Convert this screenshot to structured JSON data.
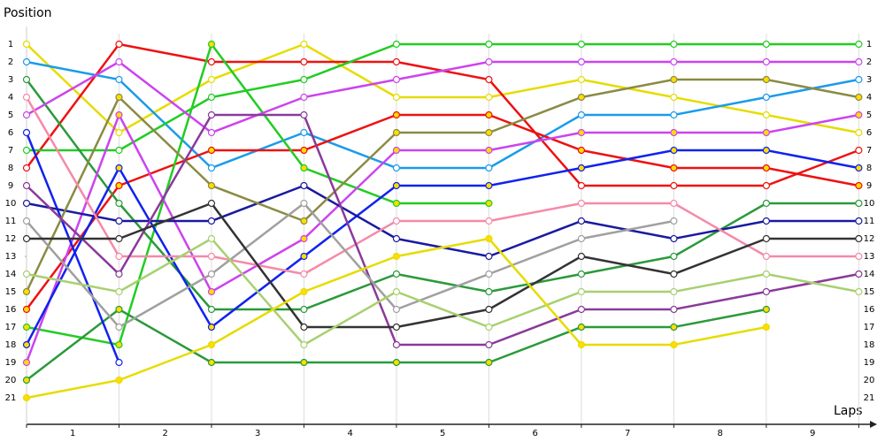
{
  "chart_data": {
    "type": "line",
    "y_label": "Position",
    "x_label": "Laps",
    "x": [
      0,
      1,
      2,
      3,
      4,
      5,
      6,
      7,
      8,
      9
    ],
    "xlim": [
      0,
      9.14
    ],
    "xticks": [
      {
        "value": 0.5,
        "label": "1"
      },
      {
        "value": 1.5,
        "label": "2"
      },
      {
        "value": 2.5,
        "label": "3"
      },
      {
        "value": 3.5,
        "label": "4"
      },
      {
        "value": 4.5,
        "label": "5"
      },
      {
        "value": 5.5,
        "label": "6"
      },
      {
        "value": 6.5,
        "label": "7"
      },
      {
        "value": 7.5,
        "label": "8"
      },
      {
        "value": 8.5,
        "label": "9"
      }
    ],
    "ylim": [
      0,
      22.5
    ],
    "y_inverted": true,
    "yticks": [
      1,
      2,
      3,
      4,
      5,
      6,
      7,
      8,
      9,
      10,
      11,
      12,
      13,
      14,
      15,
      16,
      17,
      18,
      19,
      20,
      21
    ],
    "grid": true,
    "series": [
      {
        "color": "#e6dc00",
        "marker_fill": "#ffffff",
        "values": [
          1,
          6,
          3,
          1,
          4,
          4,
          3,
          4,
          5,
          6
        ]
      },
      {
        "color": "#1a9bea",
        "marker_fill": "#ffffff",
        "values": [
          2,
          3,
          8,
          6,
          8,
          8,
          5,
          5,
          4,
          3
        ]
      },
      {
        "color": "#ee1111",
        "marker_fill": "#ffffff",
        "values": [
          8,
          1,
          2,
          2,
          2,
          3,
          9,
          9,
          9,
          7
        ]
      },
      {
        "color": "#ee1111",
        "marker_fill": "#ffdd00",
        "values": [
          16,
          9,
          7,
          7,
          5,
          5,
          7,
          8,
          8,
          9
        ]
      },
      {
        "color": "#22cc22",
        "marker_fill": "#ffffff",
        "values": [
          7,
          7,
          4,
          3,
          1,
          1,
          1,
          1,
          1,
          1
        ]
      },
      {
        "color": "#22cc22",
        "marker_fill": "#ffdd00",
        "values": [
          17,
          18,
          1,
          8,
          10,
          10,
          null,
          null,
          null,
          null
        ]
      },
      {
        "color": "#2a9a3a",
        "marker_fill": "#ffffff",
        "values": [
          3,
          10,
          16,
          16,
          14,
          15,
          14,
          13,
          10,
          10
        ]
      },
      {
        "color": "#2a9a3a",
        "marker_fill": "#ffdd00",
        "values": [
          20,
          16,
          19,
          19,
          19,
          19,
          17,
          17,
          16,
          null
        ]
      },
      {
        "color": "#cc44ee",
        "marker_fill": "#ffffff",
        "values": [
          5,
          2,
          6,
          4,
          3,
          2,
          2,
          2,
          2,
          2
        ]
      },
      {
        "color": "#cc44ee",
        "marker_fill": "#ffdd00",
        "values": [
          19,
          5,
          15,
          12,
          7,
          7,
          6,
          6,
          6,
          5
        ]
      },
      {
        "color": "#1122ee",
        "marker_fill": "#ffffff",
        "values": [
          6,
          19,
          null,
          null,
          null,
          null,
          null,
          null,
          null,
          null
        ]
      },
      {
        "color": "#1122ee",
        "marker_fill": "#ffdd00",
        "values": [
          18,
          8,
          17,
          13,
          9,
          9,
          8,
          7,
          7,
          8
        ]
      },
      {
        "color": "#1a1aa0",
        "marker_fill": "#ffffff",
        "values": [
          10,
          11,
          11,
          9,
          12,
          13,
          11,
          12,
          11,
          11
        ]
      },
      {
        "color": "#8a8a44",
        "marker_fill": "#ffdd00",
        "values": [
          15,
          4,
          9,
          11,
          6,
          6,
          4,
          3,
          3,
          4
        ]
      },
      {
        "color": "#f58aa8",
        "marker_fill": "#ffffff",
        "values": [
          4,
          13,
          13,
          14,
          11,
          11,
          10,
          10,
          13,
          13
        ]
      },
      {
        "color": "#8a3a9a",
        "marker_fill": "#ffffff",
        "values": [
          9,
          14,
          5,
          5,
          18,
          18,
          16,
          16,
          15,
          14
        ]
      },
      {
        "color": "#a0a0a0",
        "marker_fill": "#ffffff",
        "values": [
          11,
          17,
          14,
          10,
          16,
          14,
          12,
          11,
          null,
          null
        ]
      },
      {
        "color": "#333333",
        "marker_fill": "#ffffff",
        "values": [
          12,
          12,
          10,
          17,
          17,
          16,
          13,
          14,
          12,
          12
        ]
      },
      {
        "color": "#a8d070",
        "marker_fill": "#ffffff",
        "values": [
          14,
          15,
          12,
          18,
          15,
          17,
          15,
          15,
          14,
          15
        ]
      },
      {
        "color": "#e6dc00",
        "marker_fill": "#ffdd00",
        "values": [
          21,
          20,
          18,
          15,
          13,
          12,
          18,
          18,
          17,
          null
        ]
      }
    ]
  }
}
